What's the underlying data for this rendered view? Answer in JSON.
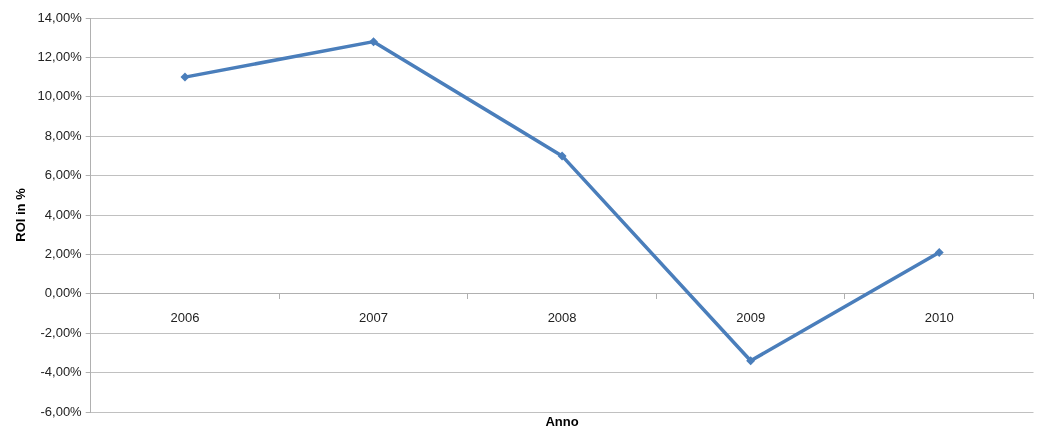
{
  "chart_data": {
    "type": "line",
    "xlabel": "Anno",
    "ylabel": "ROI in %",
    "categories": [
      "2006",
      "2007",
      "2008",
      "2009",
      "2010"
    ],
    "series": [
      {
        "color": "#4a7ebb",
        "values": [
          11.0,
          12.8,
          7.0,
          -3.4,
          2.1
        ]
      }
    ],
    "ylim": [
      -6,
      14
    ],
    "yticks": [
      {
        "value": -6,
        "label": "-6,00%"
      },
      {
        "value": -4,
        "label": "-4,00%"
      },
      {
        "value": -2,
        "label": "-2,00%"
      },
      {
        "value": 0,
        "label": "0,00%"
      },
      {
        "value": 2,
        "label": "2,00%"
      },
      {
        "value": 4,
        "label": "4,00%"
      },
      {
        "value": 6,
        "label": "6,00%"
      },
      {
        "value": 8,
        "label": "8,00%"
      },
      {
        "value": 10,
        "label": "10,00%"
      },
      {
        "value": 12,
        "label": "12,00%"
      },
      {
        "value": 14,
        "label": "14,00%"
      }
    ],
    "grid": "y",
    "legend": false,
    "marker": "diamond",
    "line_style": "solid"
  }
}
